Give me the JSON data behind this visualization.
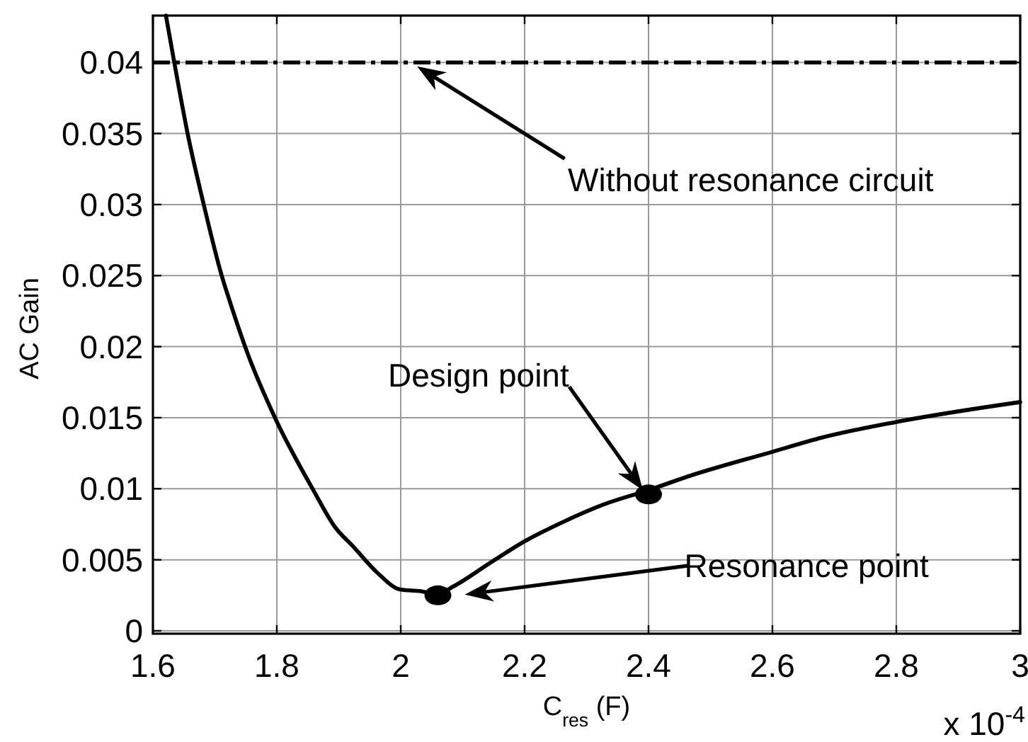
{
  "chart_data": {
    "type": "line",
    "xlabel": "C$_{res}$ (F)",
    "ylabel": "AC Gain",
    "x": [
      1.621,
      1.6345,
      1.656,
      1.682,
      1.711,
      1.724,
      1.753,
      1.797,
      1.859,
      1.894,
      1.924,
      1.962,
      2.0,
      2.03,
      2.06,
      2.084,
      2.145,
      2.2,
      2.259,
      2.328,
      2.4,
      2.466,
      2.6,
      2.68,
      2.8,
      3.0
    ],
    "series": [
      {
        "color": "#000000",
        "values": [
          0.0433,
          0.04,
          0.035,
          0.03,
          0.025,
          0.0232,
          0.0195,
          0.015,
          0.0099,
          0.0073,
          0.0059,
          0.0041,
          0.0029,
          0.0028,
          0.0026,
          0.0031,
          0.0048,
          0.0063,
          0.0076,
          0.0089,
          0.0099,
          0.0109,
          0.0126,
          0.0136,
          0.0147,
          0.0161
        ]
      },
      {
        "type": "scatter",
        "color": "#000000",
        "marker": "circle",
        "x": [
          2.06,
          2.4
        ],
        "values": [
          0.0025,
          0.0096
        ]
      }
    ],
    "xlim": [
      1.6,
      3
    ],
    "ylim": [
      -0.0002,
      0.0433
    ],
    "xticks": [
      1.6,
      1.8,
      2,
      2.2,
      2.4,
      2.6,
      2.8,
      3
    ],
    "yticks": [
      0,
      0.005,
      0.01,
      0.015,
      0.02,
      0.025,
      0.03,
      0.035,
      0.04
    ],
    "grid": true,
    "line_style": "solid",
    "ref_lines": [
      {
        "axis": "y",
        "value": 0.04,
        "label": "Without resonance circuit",
        "color": "#000000",
        "line_style": "dashdot"
      }
    ],
    "annotations": [
      "Design point",
      "Resonance point",
      "x 10$^{-4}$"
    ]
  }
}
